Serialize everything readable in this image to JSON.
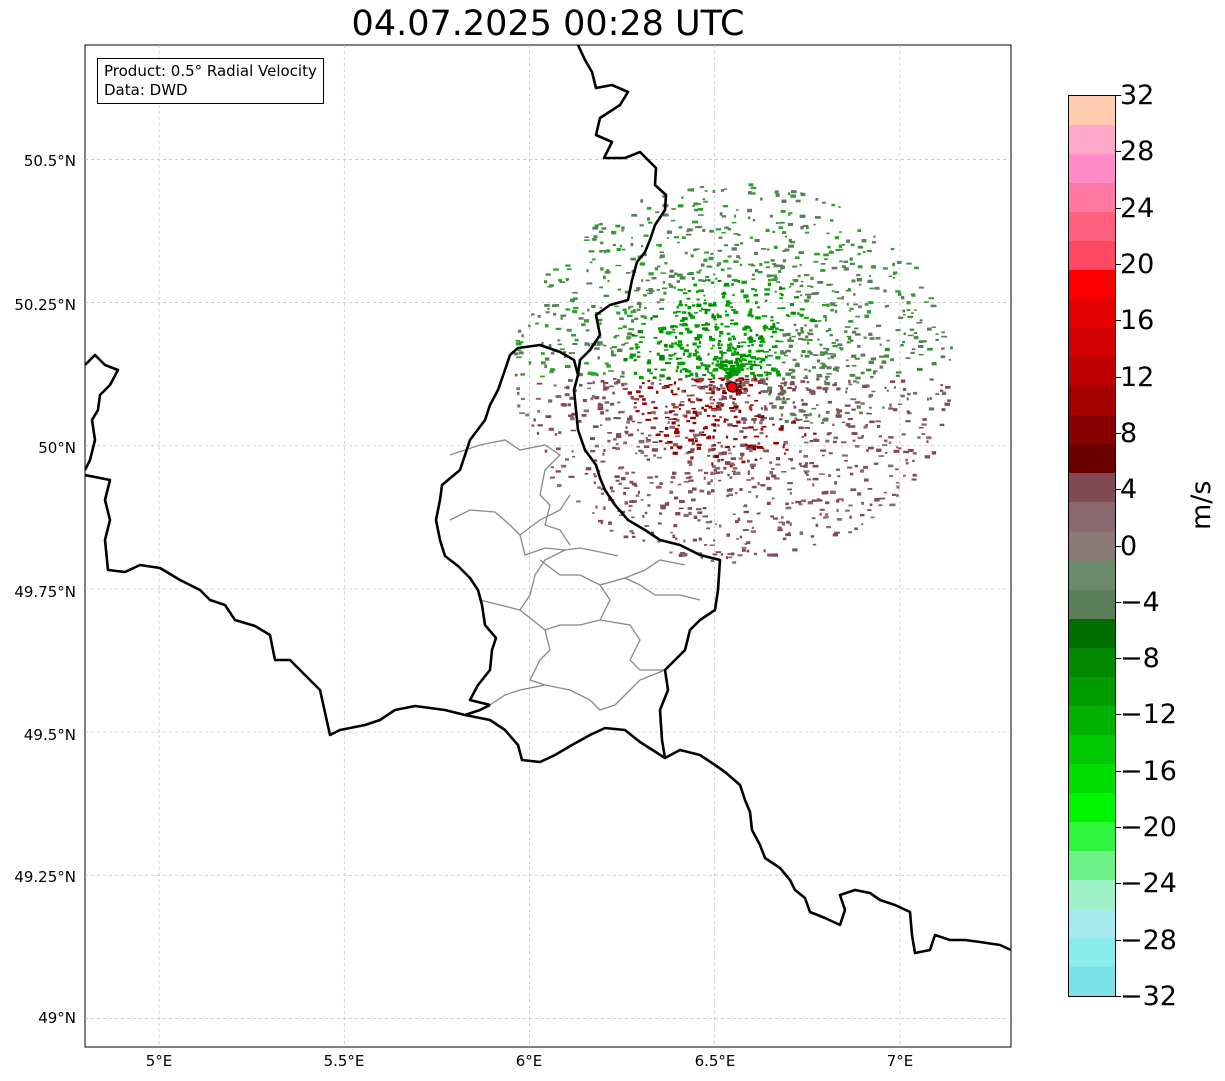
{
  "title": "04.07.2025 00:28 UTC",
  "infobox": {
    "product": "Product: 0.5° Radial Velocity",
    "data": "Data: DWD"
  },
  "axes": {
    "lon_ticks": [
      "5°E",
      "5.5°E",
      "6°E",
      "6.5°E",
      "7°E"
    ],
    "lat_ticks": [
      "50.5°N",
      "50.25°N",
      "50°N",
      "49.75°N",
      "49.5°N",
      "49.25°N",
      "49°N"
    ]
  },
  "map_extent": {
    "lon": [
      4.8,
      7.3
    ],
    "lat": [
      48.95,
      50.7
    ]
  },
  "radar_site": {
    "lon": 6.548,
    "lat": 50.109,
    "color": "#ff0000"
  },
  "colorbar": {
    "unit": "m/s",
    "ticks": [
      "32",
      "28",
      "24",
      "20",
      "16",
      "12",
      "8",
      "4",
      "0",
      "−4",
      "−8",
      "−12",
      "−16",
      "−20",
      "−24",
      "−28",
      "−32"
    ],
    "range": [
      -32,
      32
    ],
    "colors_bottom_to_top": [
      "#78e2e6",
      "#8aecec",
      "#a6eaee",
      "#9ef2c8",
      "#6cf288",
      "#2ef43e",
      "#00f500",
      "#00de00",
      "#00c800",
      "#00b200",
      "#009c00",
      "#008800",
      "#006f00",
      "#5a7e58",
      "#6a8a6a",
      "#8a7a78",
      "#8a6870",
      "#824a52",
      "#6a0000",
      "#880000",
      "#a40000",
      "#bc0000",
      "#d20000",
      "#e40000",
      "#ff0000",
      "#ff4864",
      "#ff607e",
      "#ff78a4",
      "#ff8cc8",
      "#ffa8c8",
      "#ffccb0"
    ]
  }
}
